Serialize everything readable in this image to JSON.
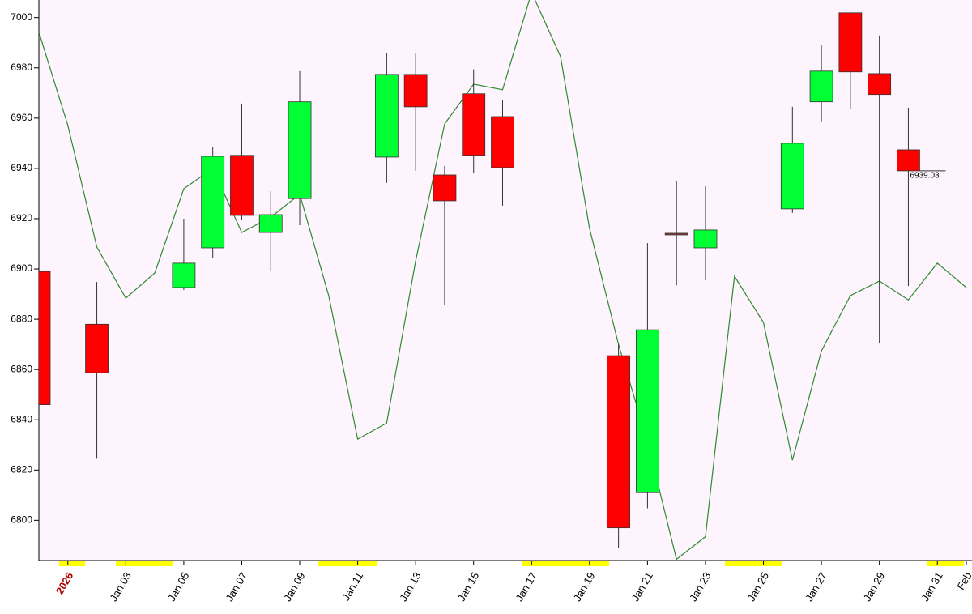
{
  "chart_data": {
    "type": "candlestick",
    "x": [
      "2025-12-31",
      "2026-01-02",
      "2026-01-05",
      "2026-01-06",
      "2026-01-07",
      "2026-01-08",
      "2026-01-09",
      "2026-01-12",
      "2026-01-13",
      "2026-01-14",
      "2026-01-15",
      "2026-01-16",
      "2026-01-20",
      "2026-01-21",
      "2026-01-22",
      "2026-01-23",
      "2026-01-26",
      "2026-01-27",
      "2026-01-28",
      "2026-01-29",
      "2026-01-30"
    ],
    "open": [
      6899,
      6878,
      6892.6,
      6908.4,
      6945.2,
      6914.5,
      6928,
      6944.5,
      6977.4,
      6937.4,
      6969.7,
      6960.6,
      6865.5,
      6811,
      6914.2,
      6908.4,
      6923.9,
      6966.5,
      7001.9,
      6977.7,
      6947.4
    ],
    "high": [
      6899,
      6894.8,
      6920,
      6948.4,
      6965.8,
      6931,
      6978.7,
      6986,
      6986,
      6941,
      6979.4,
      6967,
      6870,
      6910.3,
      6934.8,
      6932.9,
      6964.5,
      6989,
      7001.9,
      6992.9,
      6964.2
    ],
    "low": [
      6846,
      6824.5,
      6891.6,
      6904.5,
      6919.4,
      6899.4,
      6917.4,
      6934.2,
      6939,
      6885.8,
      6938,
      6925.2,
      6789,
      6804.8,
      6893.5,
      6895.5,
      6922.3,
      6958.7,
      6963.5,
      6870.6,
      6893.2
    ],
    "close": [
      6846,
      6858.7,
      6902.3,
      6944.8,
      6921.3,
      6921.6,
      6966.5,
      6977.4,
      6964.5,
      6927.1,
      6945.2,
      6940.3,
      6797,
      6875.8,
      6914.2,
      6915.5,
      6950,
      6978.7,
      6978.4,
      6969.4,
      6939.03
    ],
    "up_color": "#00ff33",
    "down_color": "#ff0000",
    "flat_color": "#8b3a3a",
    "overlay": {
      "type": "line",
      "color": "#2e8b2e",
      "x": [
        "2025-12-31",
        "2026-01-01",
        "2026-01-02",
        "2026-01-03",
        "2026-01-04",
        "2026-01-05",
        "2026-01-06",
        "2026-01-07",
        "2026-01-08",
        "2026-01-09",
        "2026-01-10",
        "2026-01-11",
        "2026-01-12",
        "2026-01-13",
        "2026-01-14",
        "2026-01-15",
        "2026-01-16",
        "2026-01-17",
        "2026-01-18",
        "2026-01-19",
        "2026-01-20",
        "2026-01-21",
        "2026-01-22",
        "2026-01-23",
        "2026-01-24",
        "2026-01-25",
        "2026-01-26",
        "2026-01-27",
        "2026-01-28",
        "2026-01-29",
        "2026-01-30",
        "2026-01-31",
        "2026-02-01"
      ],
      "values": [
        6994.2,
        6957.1,
        6908.7,
        6888.4,
        6898.4,
        6931.9,
        6940,
        6914.5,
        6920.6,
        6929.7,
        6889.4,
        6832.3,
        6838.7,
        6903.2,
        6957.7,
        6973.5,
        6971.3,
        7010,
        6984.5,
        6916.1,
        6870,
        6831.3,
        6784.5,
        6793.5,
        6897.1,
        6878.7,
        6823.9,
        6867.4,
        6889.4,
        6895.2,
        6887.7,
        6902.3,
        6892.6
      ]
    },
    "xlim": [
      "2025-12-31",
      "2026-02-01"
    ],
    "xticks": [
      {
        "value": "2026-01-01",
        "label": "2026"
      },
      {
        "value": "2026-01-03",
        "label": "Jan.03"
      },
      {
        "value": "2026-01-05",
        "label": "Jan.05"
      },
      {
        "value": "2026-01-07",
        "label": "Jan.07"
      },
      {
        "value": "2026-01-09",
        "label": "Jan.09"
      },
      {
        "value": "2026-01-11",
        "label": "Jan.11"
      },
      {
        "value": "2026-01-13",
        "label": "Jan.13"
      },
      {
        "value": "2026-01-15",
        "label": "Jan.15"
      },
      {
        "value": "2026-01-17",
        "label": "Jan.17"
      },
      {
        "value": "2026-01-19",
        "label": "Jan.19"
      },
      {
        "value": "2026-01-21",
        "label": "Jan.21"
      },
      {
        "value": "2026-01-23",
        "label": "Jan.23"
      },
      {
        "value": "2026-01-25",
        "label": "Jan.25"
      },
      {
        "value": "2026-01-27",
        "label": "Jan.27"
      },
      {
        "value": "2026-01-29",
        "label": "Jan.29"
      },
      {
        "value": "2026-01-31",
        "label": "Jan.31"
      },
      {
        "value": "2026-02-01",
        "label": "Feb"
      }
    ],
    "ylim": [
      6784,
      7007
    ],
    "yticks": [
      6800,
      6820,
      6840,
      6860,
      6880,
      6900,
      6920,
      6940,
      6960,
      6980,
      7000
    ]
  }
}
